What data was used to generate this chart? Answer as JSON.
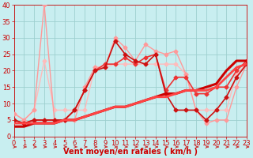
{
  "background_color": "#c8eef0",
  "grid_color": "#9ecfcf",
  "xlabel": "Vent moyen/en rafales ( km/h )",
  "ylabel": "",
  "xlim": [
    0,
    23
  ],
  "ylim": [
    0,
    40
  ],
  "yticks": [
    0,
    5,
    10,
    15,
    20,
    25,
    30,
    35,
    40
  ],
  "xticks": [
    0,
    1,
    2,
    3,
    4,
    5,
    6,
    7,
    8,
    9,
    10,
    11,
    12,
    13,
    14,
    15,
    16,
    17,
    18,
    19,
    20,
    21,
    22,
    23
  ],
  "series": [
    {
      "name": "line1_light_pink",
      "x": [
        0,
        1,
        2,
        3,
        4,
        5,
        6,
        7,
        8,
        9,
        10,
        11,
        12,
        13,
        14,
        15,
        16,
        17,
        18,
        19,
        20,
        21,
        22,
        23
      ],
      "y": [
        7,
        5,
        8,
        23,
        8,
        8,
        8,
        8,
        21,
        21,
        22,
        22,
        22,
        22,
        22,
        22,
        22,
        19,
        8,
        8,
        8,
        8,
        19,
        22
      ],
      "color": "#ffbbbb",
      "lw": 1.0,
      "marker": "D",
      "ms": 2.5,
      "zorder": 2
    },
    {
      "name": "line2_pink_40",
      "x": [
        0,
        1,
        2,
        3,
        4,
        5,
        6,
        7,
        8,
        9,
        10,
        11,
        12,
        13,
        14,
        15,
        16,
        17,
        18,
        19,
        20,
        21,
        22,
        23
      ],
      "y": [
        7,
        5,
        8,
        40,
        5,
        5,
        5,
        15,
        21,
        21,
        30,
        27,
        23,
        28,
        26,
        25,
        26,
        19,
        8,
        4,
        5,
        5,
        15,
        22
      ],
      "color": "#ff9999",
      "lw": 1.0,
      "marker": "D",
      "ms": 2.5,
      "zorder": 3
    },
    {
      "name": "line3_mid_red_wiggly",
      "x": [
        0,
        1,
        2,
        3,
        4,
        5,
        6,
        7,
        8,
        9,
        10,
        11,
        12,
        13,
        14,
        15,
        16,
        17,
        18,
        19,
        20,
        21,
        22,
        23
      ],
      "y": [
        5,
        4,
        5,
        5,
        5,
        5,
        8,
        14,
        20,
        22,
        22,
        24,
        22,
        24,
        25,
        14,
        18,
        18,
        13,
        13,
        15,
        15,
        20,
        23
      ],
      "color": "#ee3333",
      "lw": 1.2,
      "marker": "D",
      "ms": 2.5,
      "zorder": 4
    },
    {
      "name": "line4_dark_red_wiggly",
      "x": [
        0,
        1,
        2,
        3,
        4,
        5,
        6,
        7,
        8,
        9,
        10,
        11,
        12,
        13,
        14,
        15,
        16,
        17,
        18,
        19,
        20,
        21,
        22,
        23
      ],
      "y": [
        5,
        4,
        5,
        5,
        5,
        5,
        8,
        14,
        20,
        21,
        29,
        25,
        23,
        22,
        25,
        13,
        8,
        8,
        8,
        5,
        8,
        12,
        18,
        22
      ],
      "color": "#cc1111",
      "lw": 1.2,
      "marker": "D",
      "ms": 2.5,
      "zorder": 5
    },
    {
      "name": "line5_straight_dark",
      "x": [
        0,
        1,
        2,
        3,
        4,
        5,
        6,
        7,
        8,
        9,
        10,
        11,
        12,
        13,
        14,
        15,
        16,
        17,
        18,
        19,
        20,
        21,
        22,
        23
      ],
      "y": [
        3,
        3,
        4,
        4,
        4,
        5,
        5,
        6,
        7,
        8,
        9,
        9,
        10,
        11,
        12,
        13,
        13,
        14,
        14,
        15,
        16,
        20,
        23,
        23
      ],
      "color": "#cc0000",
      "lw": 2.2,
      "marker": null,
      "ms": 0,
      "zorder": 6
    },
    {
      "name": "line6_straight_lighter",
      "x": [
        0,
        1,
        2,
        3,
        4,
        5,
        6,
        7,
        8,
        9,
        10,
        11,
        12,
        13,
        14,
        15,
        16,
        17,
        18,
        19,
        20,
        21,
        22,
        23
      ],
      "y": [
        4,
        4,
        4,
        4,
        4,
        5,
        5,
        6,
        7,
        8,
        9,
        9,
        10,
        11,
        12,
        12,
        13,
        14,
        14,
        14,
        15,
        18,
        21,
        22
      ],
      "color": "#ff4444",
      "lw": 2.0,
      "marker": null,
      "ms": 0,
      "zorder": 7
    }
  ],
  "arrow_color": "#cc0000",
  "xlabel_color": "#cc0000",
  "xlabel_fontsize": 7,
  "tick_fontsize": 6,
  "tick_color": "#cc0000"
}
